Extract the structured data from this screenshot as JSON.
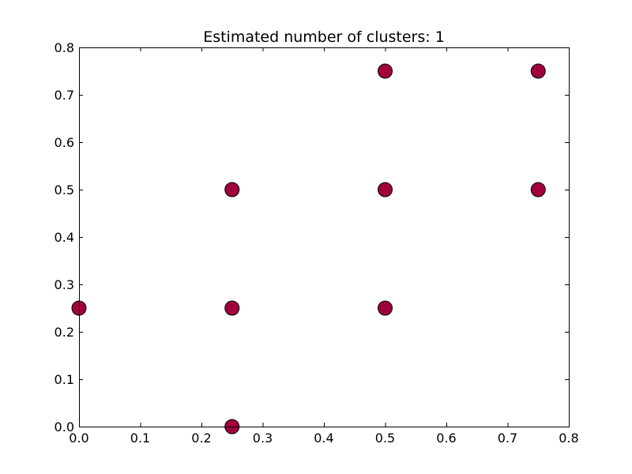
{
  "chart_data": {
    "type": "scatter",
    "title": "Estimated number of clusters: 1",
    "xlabel": "",
    "ylabel": "",
    "xlim": [
      0.0,
      0.8
    ],
    "ylim": [
      0.0,
      0.8
    ],
    "xticks": [
      "0.0",
      "0.1",
      "0.2",
      "0.3",
      "0.4",
      "0.5",
      "0.6",
      "0.7",
      "0.8"
    ],
    "yticks": [
      "0.0",
      "0.1",
      "0.2",
      "0.3",
      "0.4",
      "0.5",
      "0.6",
      "0.7",
      "0.8"
    ],
    "grid": false,
    "legend": "none",
    "point_color": "#a0003c",
    "edge_color": "#000000",
    "series": [
      {
        "x": [
          0.0,
          0.25,
          0.25,
          0.25,
          0.5,
          0.5,
          0.5,
          0.75,
          0.75
        ],
        "y": [
          0.25,
          0.0,
          0.25,
          0.5,
          0.25,
          0.5,
          0.75,
          0.5,
          0.75
        ]
      }
    ]
  }
}
